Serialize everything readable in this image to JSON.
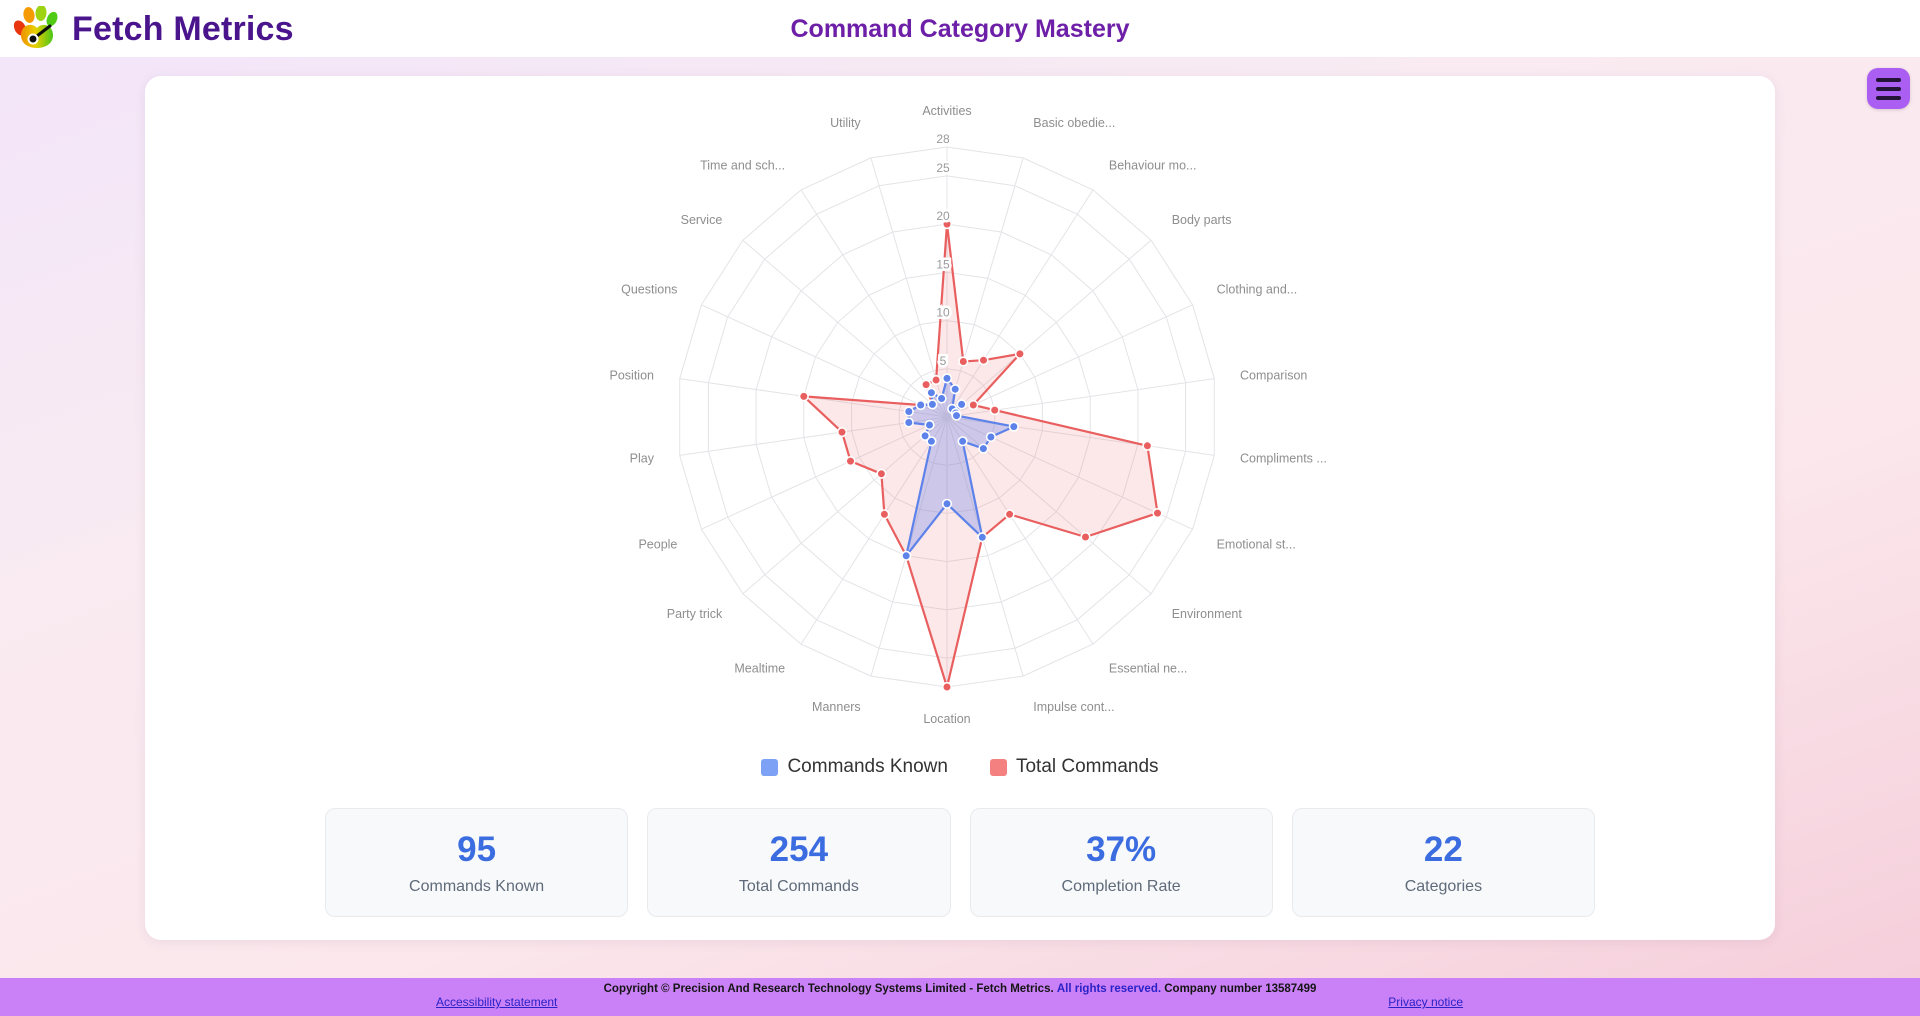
{
  "header": {
    "brand": "Fetch Metrics",
    "title": "Command Category Mastery"
  },
  "chart_data": {
    "type": "radar",
    "title": "Command Category Mastery",
    "categories": [
      "Activities",
      "Basic obedie...",
      "Behaviour mo...",
      "Body parts",
      "Clothing and...",
      "Comparison",
      "Compliments ...",
      "Emotional st...",
      "Environment",
      "Essential ne...",
      "Impulse cont...",
      "Location",
      "Manners",
      "Mealtime",
      "Party trick",
      "People",
      "Play",
      "Position",
      "Questions",
      "Service",
      "Time and sch...",
      "Utility"
    ],
    "series": [
      {
        "name": "Commands Known",
        "color": "#5d82ea",
        "fill": "rgba(105,135,235,0.32)",
        "swatch": "#7da2f5",
        "values": [
          4,
          3,
          1,
          2,
          1,
          1,
          7,
          5,
          5,
          3,
          13,
          9,
          15,
          3,
          3,
          2,
          4,
          4,
          3,
          2,
          3,
          2
        ]
      },
      {
        "name": "Total Commands",
        "color": "#e95f5f",
        "fill": "rgba(239,110,110,0.16)",
        "swatch": "#f48080",
        "values": [
          20,
          6,
          7,
          10,
          3,
          5,
          21,
          24,
          19,
          12,
          13,
          28,
          15,
          12,
          9,
          11,
          11,
          15,
          3,
          2,
          4,
          4
        ]
      }
    ],
    "rmin": 0,
    "rmax": 28,
    "ticks": [
      5,
      10,
      15,
      20,
      25,
      28
    ],
    "grid": true,
    "legend_position": "bottom",
    "grid_color": "#e4e4e8",
    "tick_color": "#9a9a9a",
    "label_color": "#8e8e8e"
  },
  "stats": [
    {
      "value": "95",
      "label": "Commands Known"
    },
    {
      "value": "254",
      "label": "Total Commands"
    },
    {
      "value": "37%",
      "label": "Completion Rate"
    },
    {
      "value": "22",
      "label": "Categories"
    }
  ],
  "footer": {
    "copyright_prefix": "Copyright © Precision And Research Technology Systems Limited - Fetch Metrics.",
    "rights_link": "All rights reserved.",
    "company": "Company number 13587499",
    "accessibility_link": "Accessibility statement",
    "privacy_link": "Privacy notice"
  }
}
